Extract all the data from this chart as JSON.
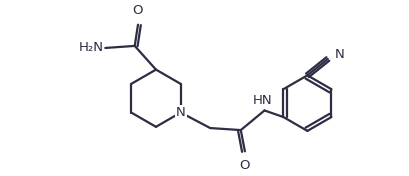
{
  "background_color": "#ffffff",
  "line_color": "#2d2d44",
  "line_width": 1.6,
  "font_size": 9.5,
  "figsize": [
    4.1,
    1.76
  ],
  "dpi": 100,
  "xlim": [
    0.0,
    10.0
  ],
  "ylim": [
    0.5,
    4.5
  ]
}
